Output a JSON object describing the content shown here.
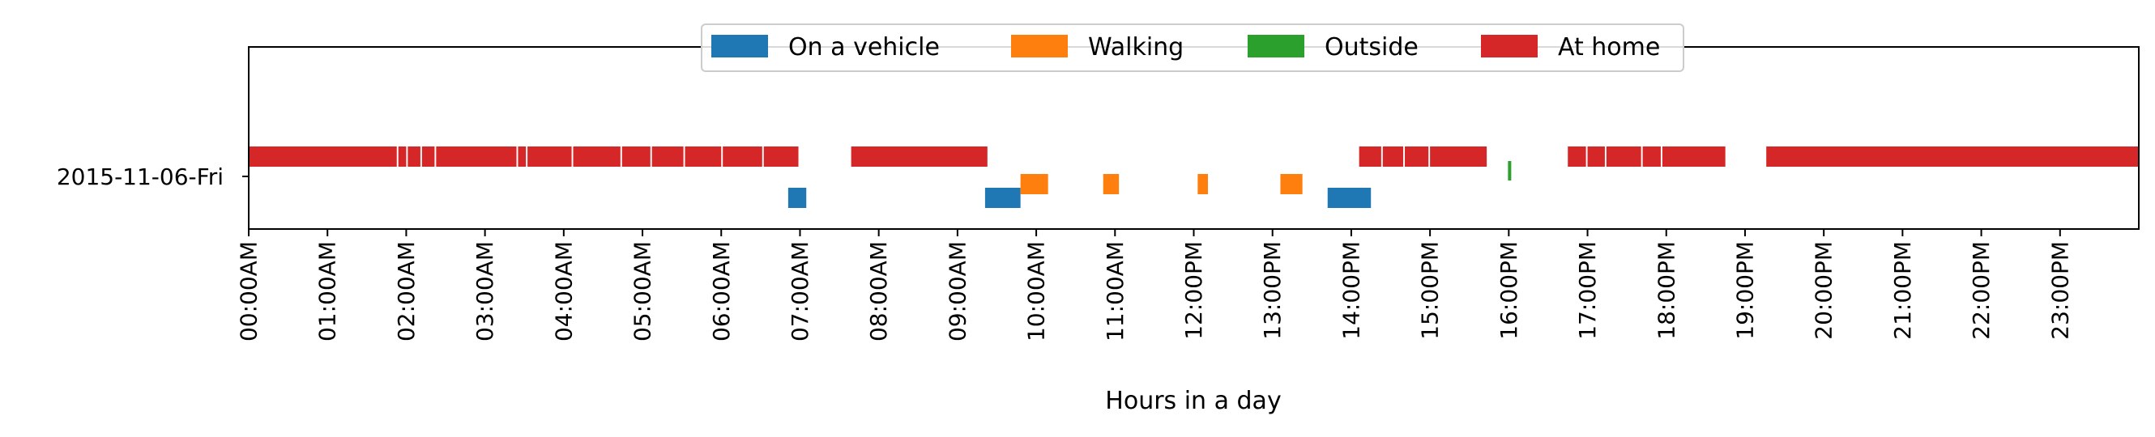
{
  "chart_data": {
    "type": "timeline",
    "xlabel": "Hours in a day",
    "ylabel": "",
    "xlim": [
      0,
      24
    ],
    "x_tick_values": [
      0,
      1,
      2,
      3,
      4,
      5,
      6,
      7,
      8,
      9,
      10,
      11,
      12,
      13,
      14,
      15,
      16,
      17,
      18,
      19,
      20,
      21,
      22,
      23
    ],
    "x_tick_labels": [
      "00:00AM",
      "01:00AM",
      "02:00AM",
      "03:00AM",
      "04:00AM",
      "05:00AM",
      "06:00AM",
      "07:00AM",
      "08:00AM",
      "09:00AM",
      "10:00AM",
      "11:00AM",
      "12:00PM",
      "13:00PM",
      "14:00PM",
      "15:00PM",
      "16:00PM",
      "17:00PM",
      "18:00PM",
      "19:00PM",
      "20:00PM",
      "21:00PM",
      "22:00PM",
      "23:00PM"
    ],
    "y_categories": [
      "2015-11-06-Fri"
    ],
    "grid": false,
    "legend_position": "top-center",
    "series": [
      {
        "name": "On a vehicle",
        "color": "#1f77b4",
        "intervals": [
          [
            6.85,
            7.08
          ],
          [
            9.35,
            9.8
          ],
          [
            13.7,
            14.25
          ]
        ]
      },
      {
        "name": "Walking",
        "color": "#ff7f0e",
        "intervals": [
          [
            9.8,
            10.15
          ],
          [
            10.85,
            11.05
          ],
          [
            12.05,
            12.18
          ],
          [
            13.1,
            13.38
          ]
        ]
      },
      {
        "name": "Outside",
        "color": "#2ca02c",
        "intervals": [
          [
            15.99,
            16.03
          ]
        ]
      },
      {
        "name": "At home",
        "color": "#d62728",
        "intervals": [
          [
            0.0,
            1.88
          ],
          [
            1.9,
            2.0
          ],
          [
            2.02,
            2.18
          ],
          [
            2.2,
            2.36
          ],
          [
            2.38,
            3.4
          ],
          [
            3.42,
            3.52
          ],
          [
            3.54,
            4.1
          ],
          [
            4.12,
            4.72
          ],
          [
            4.74,
            5.1
          ],
          [
            5.12,
            5.52
          ],
          [
            5.54,
            6.0
          ],
          [
            6.02,
            6.52
          ],
          [
            6.54,
            6.98
          ],
          [
            7.65,
            9.38
          ],
          [
            14.1,
            14.38
          ],
          [
            14.4,
            14.66
          ],
          [
            14.68,
            14.98
          ],
          [
            15.0,
            15.72
          ],
          [
            16.75,
            16.98
          ],
          [
            17.0,
            17.22
          ],
          [
            17.24,
            17.68
          ],
          [
            17.7,
            17.93
          ],
          [
            17.95,
            18.75
          ],
          [
            19.27,
            24.0
          ]
        ]
      }
    ]
  }
}
